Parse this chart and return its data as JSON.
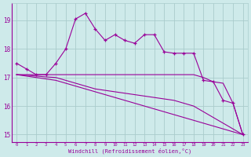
{
  "xlabel": "Windchill (Refroidissement éolien,°C)",
  "x": [
    0,
    1,
    2,
    3,
    4,
    5,
    6,
    7,
    8,
    9,
    10,
    11,
    12,
    13,
    14,
    15,
    16,
    17,
    18,
    19,
    20,
    21,
    22,
    23
  ],
  "line1": [
    17.5,
    17.3,
    17.1,
    17.1,
    17.5,
    18.0,
    19.05,
    19.25,
    18.7,
    18.3,
    18.5,
    18.3,
    18.2,
    18.5,
    18.5,
    17.9,
    17.85,
    17.85,
    17.85,
    16.9,
    16.85,
    16.2,
    16.1,
    15.0
  ],
  "line2": [
    17.1,
    17.1,
    17.1,
    17.1,
    17.1,
    17.1,
    17.1,
    17.1,
    17.1,
    17.1,
    17.1,
    17.1,
    17.1,
    17.1,
    17.1,
    17.1,
    17.1,
    17.1,
    17.1,
    17.0,
    16.85,
    16.8,
    16.1,
    15.0
  ],
  "line3": [
    17.1,
    17.05,
    17.0,
    16.95,
    16.9,
    16.8,
    16.7,
    16.6,
    16.5,
    16.4,
    16.3,
    16.2,
    16.1,
    16.0,
    15.9,
    15.8,
    15.7,
    15.6,
    15.5,
    15.4,
    15.3,
    15.2,
    15.1,
    15.0
  ],
  "line4": [
    17.1,
    17.08,
    17.05,
    17.02,
    17.0,
    16.9,
    16.8,
    16.7,
    16.6,
    16.55,
    16.5,
    16.45,
    16.4,
    16.35,
    16.3,
    16.25,
    16.2,
    16.1,
    16.0,
    15.8,
    15.6,
    15.4,
    15.2,
    15.0
  ],
  "color": "#990099",
  "bg_color": "#ceeaea",
  "grid_color": "#aacccc",
  "ylim": [
    14.75,
    19.6
  ],
  "xlim": [
    -0.5,
    23.5
  ],
  "xtick_labels": [
    "0",
    "1",
    "2",
    "3",
    "4",
    "5",
    "6",
    "7",
    "8",
    "9",
    "10",
    "11",
    "12",
    "13",
    "14",
    "15",
    "16",
    "17",
    "18",
    "19",
    "20",
    "21",
    "22",
    "23"
  ],
  "ytick_values": [
    15,
    16,
    17,
    18,
    19
  ],
  "ytick_labels": [
    "15",
    "16",
    "17",
    "18",
    "19"
  ]
}
